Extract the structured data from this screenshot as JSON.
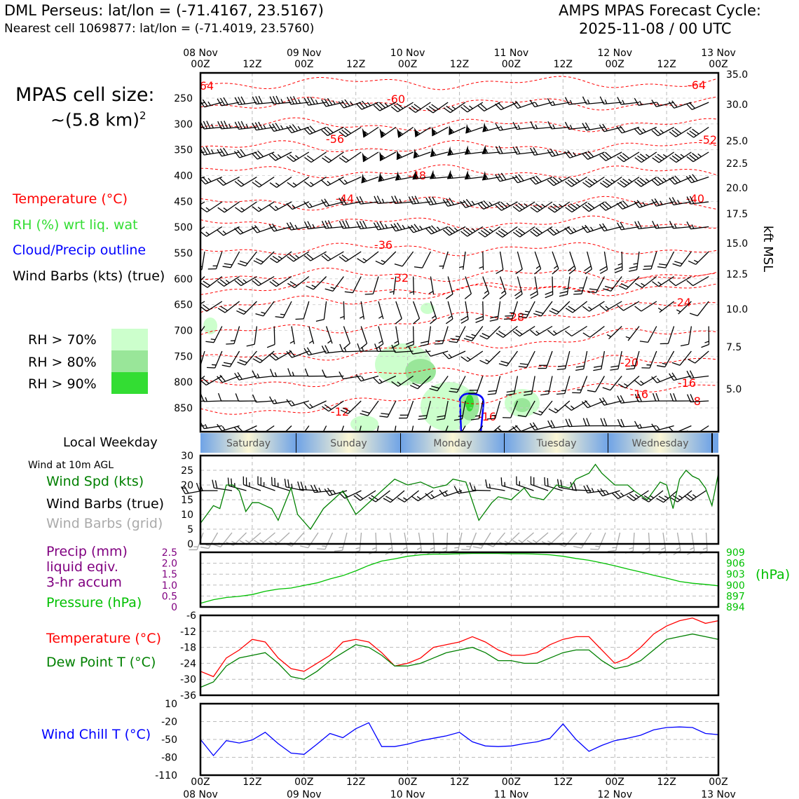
{
  "header": {
    "station": "DML Perseus: lat/lon = (-71.4167, 23.5167)",
    "nearest": "Nearest cell 1069877: lat/lon = (-71.4019, 23.5760)",
    "cycle_line1": "AMPS MPAS Forecast Cycle:",
    "cycle_line2": "2025-11-08 / 00 UTC"
  },
  "cell_size": {
    "line1": "MPAS cell size:",
    "line2": "~(5.8 km)",
    "exponent": "2"
  },
  "legend": {
    "temperature": "Temperature (°C)",
    "rh": "RH (%) wrt liq. wat",
    "cloud": "Cloud/Precip outline",
    "wind": "Wind Barbs (kts) (true)",
    "rh_levels": [
      {
        "label": "RH > 70%",
        "color": "#ccffcc"
      },
      {
        "label": "RH > 80%",
        "color": "#99e699"
      },
      {
        "label": "RH > 90%",
        "color": "#33dd33"
      }
    ]
  },
  "colors": {
    "temperature": "#ff0000",
    "dewpoint": "#008000",
    "pressure": "#00c000",
    "wind_speed": "#008000",
    "precip": "#800080",
    "wind_chill": "#0000ff",
    "grid_barbs": "#aaaaaa"
  },
  "time_axis": {
    "top_dates": [
      "08 Nov",
      "",
      "09 Nov",
      "",
      "10 Nov",
      "",
      "11 Nov",
      "",
      "12 Nov",
      "",
      "13 Nov"
    ],
    "hours": [
      "00Z",
      "12Z",
      "00Z",
      "12Z",
      "00Z",
      "12Z",
      "00Z",
      "12Z",
      "00Z",
      "12Z",
      "00Z"
    ],
    "bottom_dates": [
      "08 Nov",
      "",
      "09 Nov",
      "",
      "10 Nov",
      "",
      "11 Nov",
      "",
      "12 Nov",
      "",
      "13 Nov"
    ]
  },
  "weekday": {
    "title": "Local Weekday",
    "days": [
      "Saturday",
      "Sunday",
      "Monday",
      "Tuesday",
      "Wednesday"
    ]
  },
  "cross_section": {
    "pressure_levels": [
      "250",
      "300",
      "350",
      "400",
      "450",
      "500",
      "550",
      "600",
      "650",
      "700",
      "750",
      "800",
      "850"
    ],
    "height_ticks": [
      "35.0",
      "30.0",
      "25.0",
      "22.5",
      "20.0",
      "17.5",
      "15.0",
      "12.5",
      "10.0",
      "7.5",
      "5.0"
    ],
    "height_label": "kft MSL",
    "contour_labels": [
      "-64",
      "-60",
      "-56",
      "-52",
      "-48",
      "-44",
      "-40",
      "-36",
      "-32",
      "-28",
      "-24",
      "-20",
      "-16",
      "-12",
      "-8",
      "-16",
      "-16",
      "-64"
    ]
  },
  "wind_panel": {
    "title": "Wind at 10m AGL",
    "speed_label": "Wind Spd (kts)",
    "barbs_label": "Wind Barbs (true)",
    "grid_label": "Wind Barbs (grid)"
  },
  "precip_panel": {
    "label1": "Precip (mm)",
    "label2": "liquid eqiv.",
    "label3": "3-hr accum",
    "pressure_label": "Pressure (hPa)",
    "hpa_unit": "(hPa)"
  },
  "temp_panel": {
    "temp_label": "Temperature (°C)",
    "dew_label": "Dew Point T (°C)"
  },
  "chill_panel": {
    "label": "Wind Chill T (°C)"
  },
  "chart_data": [
    {
      "type": "line",
      "title": "Wind at 10m AGL",
      "ylabel": "Wind Spd (kts)",
      "x_hours": [
        0,
        6,
        9,
        12,
        15,
        18,
        21,
        24,
        27,
        33,
        36,
        42,
        45,
        51,
        57,
        66,
        72,
        84,
        90,
        96,
        102,
        108,
        114,
        117,
        123,
        129,
        135,
        138,
        144,
        150,
        153,
        159,
        165,
        171,
        174,
        180,
        183,
        186,
        192,
        198,
        201,
        207,
        213,
        216,
        219,
        222,
        225,
        228,
        231,
        234,
        237,
        240
      ],
      "values": [
        7,
        13,
        12,
        20,
        20,
        18,
        11,
        14,
        14,
        12,
        8,
        19,
        10,
        5,
        12,
        18,
        10,
        18,
        22,
        20,
        21,
        19,
        20,
        22,
        21,
        8,
        14,
        16,
        15,
        19,
        16,
        15,
        20,
        19,
        22,
        24,
        27,
        24,
        20,
        20,
        18,
        15,
        21,
        20,
        12,
        22,
        25,
        23,
        22,
        19,
        13,
        24
      ],
      "ylim": [
        0,
        30
      ],
      "yticks": [
        "0",
        "5",
        "10",
        "15",
        "20",
        "25",
        "30"
      ]
    },
    {
      "type": "line",
      "title": "Pressure",
      "ylabel": "Pressure (hPa)",
      "precip_yticks": [
        "0",
        "0.5",
        "1.0",
        "1.5",
        "2.0",
        "2.5"
      ],
      "pressure_yticks": [
        "894",
        "897",
        "900",
        "903",
        "906",
        "909"
      ],
      "x_hours": [
        0,
        6,
        12,
        18,
        24,
        30,
        36,
        42,
        48,
        54,
        60,
        66,
        72,
        78,
        84,
        90,
        96,
        102,
        108,
        114,
        120,
        126,
        132,
        138,
        144,
        150,
        156,
        162,
        168,
        174,
        180,
        186,
        192,
        198,
        204,
        210,
        216,
        222,
        228,
        234,
        240
      ],
      "values": [
        895,
        896,
        896.6,
        896.9,
        897.4,
        898.3,
        898.9,
        899.2,
        899.9,
        900.6,
        901.7,
        902.6,
        903.9,
        905.4,
        906.6,
        907.2,
        907.9,
        908.3,
        908.5,
        908.5,
        908.6,
        908.7,
        908.7,
        908.7,
        908.6,
        908.6,
        908.5,
        908.3,
        907.9,
        907.3,
        906.8,
        906.1,
        905.3,
        904.4,
        903.6,
        902.7,
        901.9,
        901.0,
        900.5,
        900.2,
        899.8
      ],
      "ylim": [
        894,
        909
      ]
    },
    {
      "type": "line",
      "title": "Temperature / Dew Point",
      "yticks": [
        "-36",
        "-30",
        "-24",
        "-18",
        "-12",
        "-6"
      ],
      "ylim": [
        -36,
        -6
      ],
      "x_hours": [
        0,
        6,
        12,
        18,
        24,
        30,
        36,
        42,
        48,
        54,
        60,
        66,
        72,
        78,
        84,
        90,
        96,
        102,
        108,
        114,
        120,
        126,
        132,
        138,
        144,
        150,
        156,
        162,
        168,
        174,
        180,
        186,
        192,
        198,
        204,
        210,
        216,
        222,
        228,
        234,
        240
      ],
      "series": [
        {
          "name": "Temperature (°C)",
          "values": [
            -27,
            -29,
            -22,
            -19,
            -15,
            -16,
            -22,
            -26,
            -27,
            -24,
            -21,
            -16,
            -15,
            -16,
            -20,
            -25,
            -24,
            -22,
            -18,
            -17,
            -16,
            -14,
            -16,
            -19,
            -21,
            -21,
            -20,
            -17,
            -15,
            -14,
            -14,
            -19,
            -24,
            -22,
            -18,
            -13,
            -10,
            -8,
            -7,
            -9,
            -8
          ],
          "x_hours": [
            0,
            6,
            12,
            18,
            24,
            30,
            36,
            42,
            48,
            54,
            60,
            66,
            72,
            78,
            84,
            90,
            96,
            102,
            108,
            114,
            120,
            126,
            132,
            138,
            144,
            150,
            156,
            162,
            168,
            174,
            180,
            186,
            192,
            198,
            204,
            210,
            216,
            222,
            228,
            234,
            240
          ]
        },
        {
          "name": "Dew Point T (°C)",
          "values": [
            -33,
            -31,
            -25,
            -22,
            -21,
            -20,
            -24,
            -29,
            -30,
            -27,
            -23,
            -20,
            -17,
            -18,
            -21,
            -25,
            -25,
            -24,
            -22,
            -20,
            -19,
            -18,
            -20,
            -23,
            -23,
            -24,
            -24,
            -22,
            -20,
            -19,
            -19,
            -23,
            -26,
            -25,
            -23,
            -19,
            -15,
            -14,
            -13,
            -14,
            -15
          ],
          "x_hours": [
            0,
            6,
            12,
            18,
            24,
            30,
            36,
            42,
            48,
            54,
            60,
            66,
            72,
            78,
            84,
            90,
            96,
            102,
            108,
            114,
            120,
            126,
            132,
            138,
            144,
            150,
            156,
            162,
            168,
            174,
            180,
            186,
            192,
            198,
            204,
            210,
            216,
            222,
            228,
            234,
            240
          ]
        }
      ]
    },
    {
      "type": "line",
      "title": "Wind Chill",
      "ylabel": "Wind Chill T (°C)",
      "yticks": [
        "-110",
        "-80",
        "-50",
        "-20",
        "10"
      ],
      "ylim": [
        -110,
        10
      ],
      "x_hours": [
        0,
        6,
        12,
        18,
        24,
        30,
        36,
        42,
        48,
        54,
        60,
        66,
        72,
        78,
        84,
        90,
        96,
        102,
        108,
        114,
        120,
        126,
        132,
        138,
        144,
        150,
        156,
        162,
        168,
        174,
        180,
        186,
        192,
        198,
        204,
        210,
        216,
        222,
        228,
        234,
        240
      ],
      "values": [
        -50,
        -77,
        -52,
        -56,
        -51,
        -38,
        -57,
        -73,
        -75,
        -58,
        -40,
        -47,
        -32,
        -22,
        -62,
        -62,
        -58,
        -52,
        -48,
        -44,
        -38,
        -54,
        -61,
        -62,
        -61,
        -57,
        -54,
        -48,
        -24,
        -50,
        -70,
        -60,
        -52,
        -48,
        -43,
        -34,
        -30,
        -29,
        -30,
        -40,
        -42
      ]
    }
  ]
}
